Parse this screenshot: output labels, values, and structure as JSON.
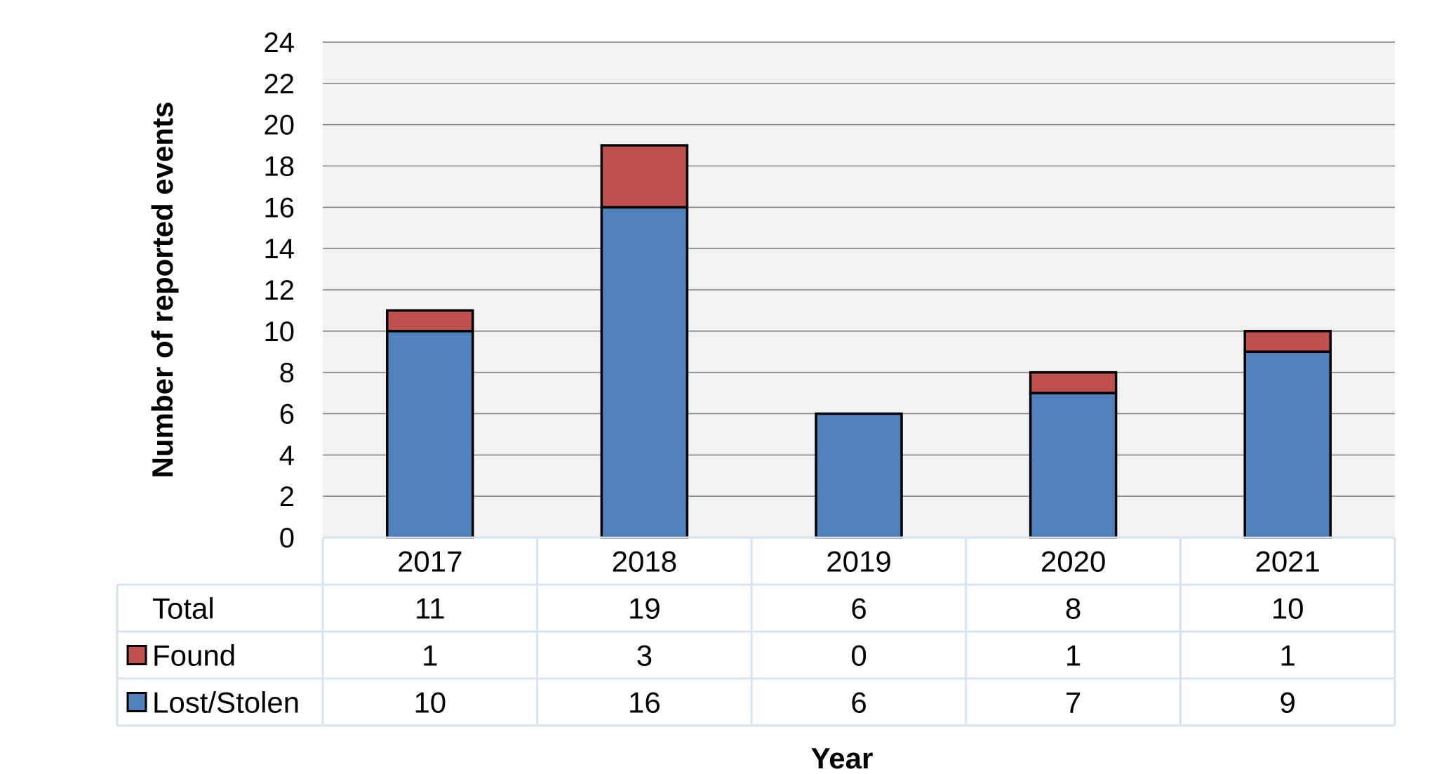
{
  "chart_data": {
    "type": "bar",
    "stacked": true,
    "categories": [
      "2017",
      "2018",
      "2019",
      "2020",
      "2021"
    ],
    "series": [
      {
        "name": "Lost/Stolen",
        "values": [
          10,
          16,
          6,
          7,
          9
        ],
        "color": "#4f81bd"
      },
      {
        "name": "Found",
        "values": [
          1,
          3,
          0,
          1,
          1
        ],
        "color": "#c0504d"
      }
    ],
    "totals": {
      "label": "Total",
      "values": [
        11,
        19,
        6,
        8,
        10
      ]
    },
    "xlabel": "Year",
    "ylabel": "Number of reported events",
    "ylim": [
      0,
      24
    ],
    "yticks": [
      "0",
      "2",
      "4",
      "6",
      "8",
      "10",
      "12",
      "14",
      "16",
      "18",
      "20",
      "22",
      "24"
    ],
    "grid": true,
    "data_table": true,
    "plot_background": "#f2f2f2",
    "table_border_color": "#d9e3ef"
  }
}
